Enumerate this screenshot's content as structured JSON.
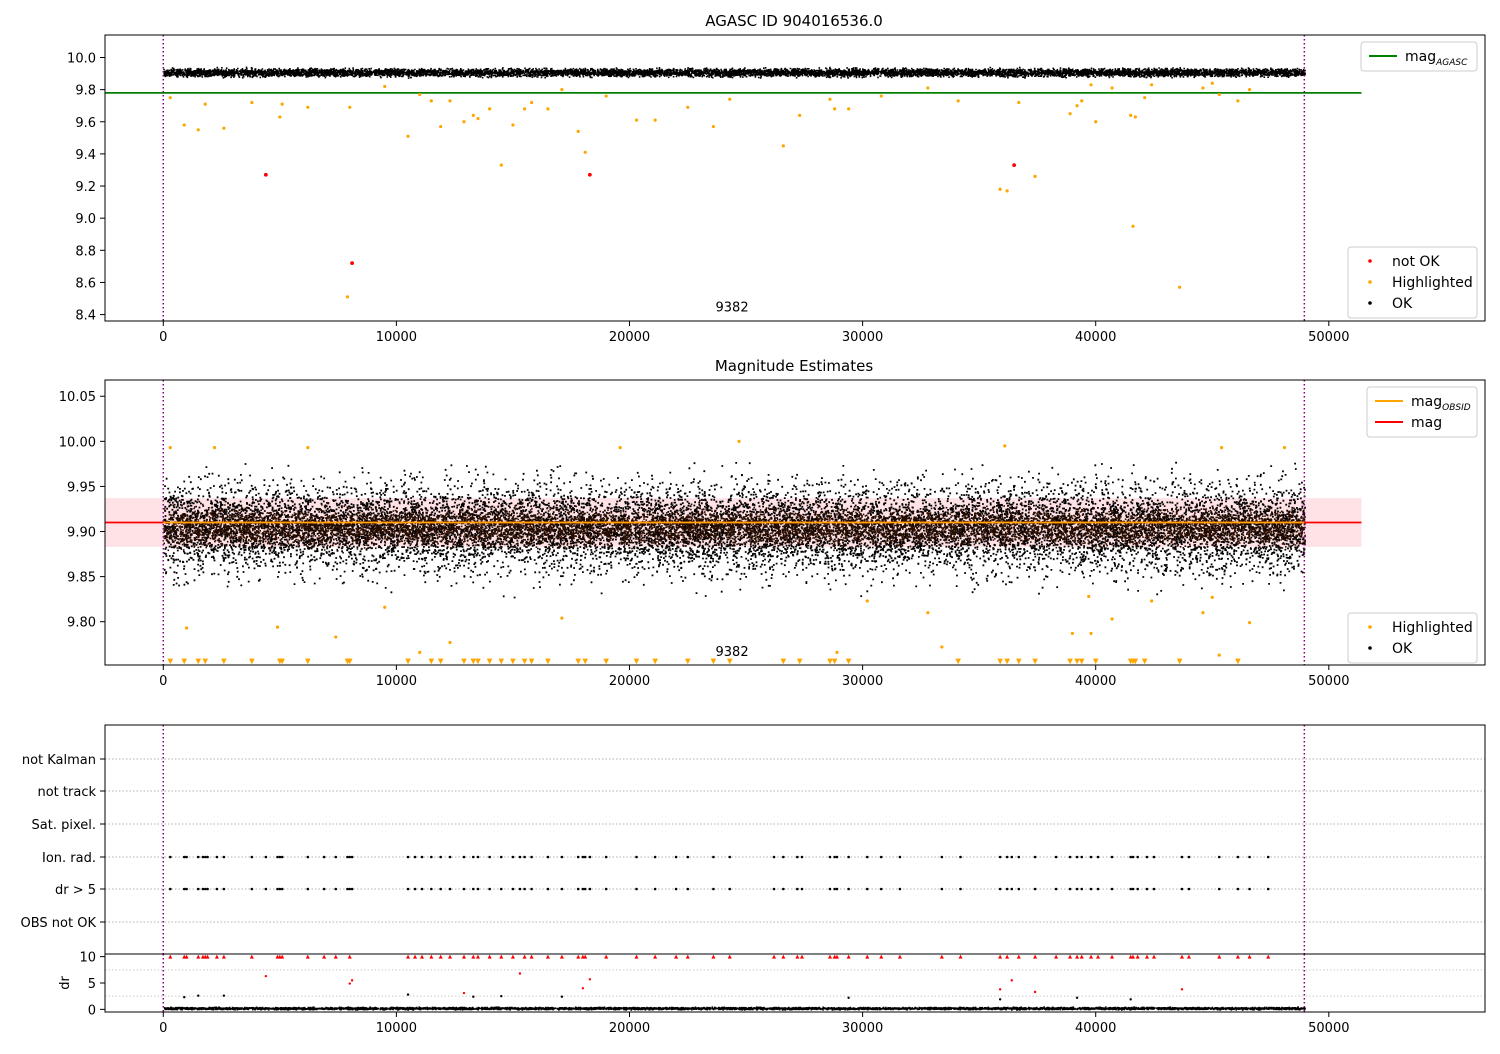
{
  "figure_title": "AGASC ID 904016536.0",
  "chart_data": [
    {
      "id": "agasc",
      "type": "scatter",
      "title": "AGASC ID 904016536.0",
      "xlim": [
        -2500,
        56700
      ],
      "ylim": [
        8.36,
        10.14
      ],
      "xticks": [
        0,
        10000,
        20000,
        30000,
        40000,
        50000
      ],
      "yticks": [
        "8.4",
        "8.6",
        "8.8",
        "9.0",
        "9.2",
        "9.4",
        "9.6",
        "9.8",
        "10.0"
      ],
      "obs_boundaries": [
        0,
        48950
      ],
      "obsid_label": "9382",
      "obsid_label_pos": [
        24400,
        8.42
      ],
      "ok_band": {
        "x0": 0,
        "x1": 48950,
        "center": 9.91,
        "half_width": 0.035,
        "color": "#000000"
      },
      "hlines": [
        {
          "name": "mag",
          "sub": "AGASC",
          "y": 9.78,
          "x0": -2500,
          "x1": 51400,
          "color": "#008000"
        }
      ],
      "series": [
        {
          "name": "not OK",
          "color": "#ff0000",
          "points": [
            [
              4400,
              9.27
            ],
            [
              8100,
              8.72
            ],
            [
              18300,
              9.27
            ],
            [
              36500,
              9.33
            ]
          ]
        },
        {
          "name": "Highlighted",
          "color": "#ffa500",
          "points": [
            [
              300,
              9.75
            ],
            [
              900,
              9.58
            ],
            [
              1500,
              9.55
            ],
            [
              1800,
              9.71
            ],
            [
              2600,
              9.56
            ],
            [
              3800,
              9.72
            ],
            [
              5000,
              9.63
            ],
            [
              5100,
              9.71
            ],
            [
              6200,
              9.69
            ],
            [
              7900,
              8.51
            ],
            [
              8000,
              9.69
            ],
            [
              9500,
              9.82
            ],
            [
              10500,
              9.51
            ],
            [
              11000,
              9.77
            ],
            [
              11500,
              9.73
            ],
            [
              11900,
              9.57
            ],
            [
              12300,
              9.73
            ],
            [
              12900,
              9.6
            ],
            [
              13300,
              9.64
            ],
            [
              13500,
              9.62
            ],
            [
              14000,
              9.68
            ],
            [
              14500,
              9.33
            ],
            [
              15000,
              9.58
            ],
            [
              15500,
              9.68
            ],
            [
              15800,
              9.72
            ],
            [
              16500,
              9.68
            ],
            [
              17100,
              9.8
            ],
            [
              17800,
              9.54
            ],
            [
              18100,
              9.41
            ],
            [
              19000,
              9.76
            ],
            [
              20300,
              9.61
            ],
            [
              21100,
              9.61
            ],
            [
              22500,
              9.69
            ],
            [
              23600,
              9.57
            ],
            [
              24300,
              9.74
            ],
            [
              26600,
              9.45
            ],
            [
              27300,
              9.64
            ],
            [
              28600,
              9.74
            ],
            [
              28800,
              9.68
            ],
            [
              29400,
              9.68
            ],
            [
              30800,
              9.76
            ],
            [
              32800,
              9.81
            ],
            [
              34100,
              9.73
            ],
            [
              35900,
              9.18
            ],
            [
              36200,
              9.17
            ],
            [
              36700,
              9.72
            ],
            [
              37400,
              9.26
            ],
            [
              38900,
              9.65
            ],
            [
              39200,
              9.7
            ],
            [
              39400,
              9.73
            ],
            [
              39800,
              9.83
            ],
            [
              40000,
              9.6
            ],
            [
              40700,
              9.81
            ],
            [
              41500,
              9.64
            ],
            [
              41600,
              8.95
            ],
            [
              41700,
              9.63
            ],
            [
              42100,
              9.75
            ],
            [
              42400,
              9.83
            ],
            [
              43600,
              8.57
            ],
            [
              44600,
              9.81
            ],
            [
              45000,
              9.84
            ],
            [
              45300,
              9.77
            ],
            [
              46100,
              9.73
            ],
            [
              46600,
              9.8
            ]
          ]
        }
      ],
      "legends": [
        {
          "position": "top-right",
          "entries": [
            {
              "label": "mag",
              "sub": "AGASC",
              "kind": "line",
              "color": "#008000"
            }
          ]
        },
        {
          "position": "bottom-right",
          "entries": [
            {
              "label": "not OK",
              "kind": "marker",
              "color": "#ff0000"
            },
            {
              "label": "Highlighted",
              "kind": "marker",
              "color": "#ffa500"
            },
            {
              "label": "OK",
              "kind": "marker",
              "color": "#000000"
            }
          ]
        }
      ]
    },
    {
      "id": "estimates",
      "type": "scatter",
      "title": "Magnitude Estimates",
      "xlim": [
        -2500,
        56700
      ],
      "ylim": [
        9.752,
        10.068
      ],
      "xticks": [
        0,
        10000,
        20000,
        30000,
        40000,
        50000
      ],
      "yticks": [
        "9.80",
        "9.85",
        "9.90",
        "9.95",
        "10.00",
        "10.05"
      ],
      "obs_boundaries": [
        0,
        48950
      ],
      "obsid_label": "9382",
      "obsid_label_pos": [
        24400,
        9.762
      ],
      "ok_band": {
        "x0": 0,
        "x1": 48950,
        "center": 9.905,
        "half_width": 0.03,
        "color": "#2a0e00"
      },
      "shaded_band": {
        "y0": 9.883,
        "y1": 9.937,
        "x0": -2500,
        "x1": 51400,
        "color": "#ffb6c1",
        "opacity": 0.4
      },
      "hlines": [
        {
          "name": "mag",
          "y": 9.91,
          "x0": -2500,
          "x1": 51400,
          "color": "#ff0000"
        },
        {
          "name": "mag",
          "sub": "OBSID",
          "y": 9.91,
          "x0": 0,
          "x1": 48950,
          "color": "#ffa500"
        }
      ],
      "series": [
        {
          "name": "Highlighted",
          "color": "#ffa500",
          "points": [
            [
              300,
              9.993
            ],
            [
              1000,
              9.793
            ],
            [
              2200,
              9.993
            ],
            [
              4900,
              9.794
            ],
            [
              6200,
              9.993
            ],
            [
              7400,
              9.783
            ],
            [
              9500,
              9.816
            ],
            [
              11000,
              9.766
            ],
            [
              12300,
              9.777
            ],
            [
              17100,
              9.804
            ],
            [
              19600,
              9.993
            ],
            [
              24700,
              10.0
            ],
            [
              28900,
              9.766
            ],
            [
              30200,
              9.823
            ],
            [
              32800,
              9.81
            ],
            [
              33400,
              9.772
            ],
            [
              36100,
              9.995
            ],
            [
              39000,
              9.787
            ],
            [
              39700,
              9.828
            ],
            [
              39800,
              9.787
            ],
            [
              40700,
              9.803
            ],
            [
              42400,
              9.823
            ],
            [
              44600,
              9.81
            ],
            [
              45000,
              9.827
            ],
            [
              45300,
              9.763
            ],
            [
              45400,
              9.993
            ],
            [
              46600,
              9.799
            ],
            [
              48100,
              9.993
            ]
          ]
        },
        {
          "name": "Highlighted (below range)",
          "color": "#ffa500",
          "marker": "triangle-down",
          "y": 9.756,
          "x": [
            300,
            900,
            1500,
            1800,
            2600,
            3800,
            5000,
            5100,
            6200,
            7900,
            8000,
            10500,
            11500,
            11900,
            12900,
            13300,
            13500,
            14000,
            14500,
            15000,
            15500,
            15800,
            16500,
            17800,
            18100,
            19000,
            20300,
            21100,
            22500,
            23600,
            24300,
            26600,
            27300,
            28600,
            28800,
            29400,
            34100,
            35900,
            36200,
            36700,
            37400,
            38900,
            39200,
            39400,
            40000,
            41500,
            41600,
            41700,
            42100,
            43600,
            46100
          ]
        }
      ],
      "legends": [
        {
          "position": "top-right",
          "entries": [
            {
              "label": "mag",
              "sub": "OBSID",
              "kind": "line",
              "color": "#ffa500"
            },
            {
              "label": "mag",
              "kind": "line",
              "color": "#ff0000"
            }
          ]
        },
        {
          "position": "bottom-right",
          "entries": [
            {
              "label": "Highlighted",
              "kind": "marker",
              "color": "#ffa500"
            },
            {
              "label": "OK",
              "kind": "marker",
              "color": "#000000"
            }
          ]
        }
      ]
    },
    {
      "id": "flags",
      "type": "scatter",
      "xlim": [
        -2500,
        56700
      ],
      "xticks": [],
      "obs_boundaries": [
        0,
        48950
      ],
      "rows": [
        "not Kalman",
        "not track",
        "Sat. pixel.",
        "Ion. rad.",
        "dr > 5",
        "OBS not OK"
      ],
      "flag_points": {
        "Ion. rad.": [
          300,
          900,
          1000,
          1500,
          1700,
          1800,
          1900,
          2300,
          2600,
          3800,
          4400,
          4900,
          5000,
          5100,
          6200,
          6900,
          7400,
          7900,
          8000,
          8100,
          10500,
          10800,
          11100,
          11500,
          11900,
          12300,
          12900,
          13300,
          13500,
          14000,
          14500,
          15000,
          15300,
          15500,
          15800,
          16500,
          17100,
          17800,
          18000,
          18100,
          18300,
          19000,
          20300,
          21100,
          22000,
          22500,
          23600,
          24300,
          26200,
          26600,
          27200,
          27400,
          28600,
          28800,
          28900,
          29400,
          30200,
          30800,
          31600,
          33400,
          34200,
          35900,
          36200,
          36400,
          36700,
          37400,
          38300,
          38900,
          39200,
          39400,
          39800,
          40100,
          40700,
          41500,
          41600,
          41800,
          42200,
          42500,
          43700,
          44000,
          45300,
          46100,
          46600,
          47400
        ],
        "dr > 5": [
          300,
          900,
          1000,
          1500,
          1700,
          1800,
          1900,
          2300,
          2600,
          3800,
          4400,
          4900,
          5000,
          5100,
          6200,
          6900,
          7400,
          7900,
          8000,
          8100,
          10500,
          10800,
          11100,
          11500,
          11900,
          12300,
          12900,
          13300,
          13500,
          14000,
          14500,
          15000,
          15300,
          15500,
          15800,
          16500,
          17100,
          17800,
          18000,
          18100,
          18300,
          19000,
          20300,
          21100,
          22000,
          22500,
          23600,
          24300,
          26200,
          26600,
          27200,
          27400,
          28600,
          28800,
          28900,
          29400,
          30200,
          30800,
          31600,
          33400,
          34200,
          35900,
          36200,
          36400,
          36700,
          37400,
          38300,
          38900,
          39200,
          39400,
          39800,
          40100,
          40700,
          41500,
          41600,
          41800,
          42200,
          42500,
          43700,
          44000,
          45300,
          46100,
          46600,
          47400
        ]
      }
    },
    {
      "id": "dr",
      "type": "scatter",
      "ylabel": "dr",
      "xlim": [
        -2500,
        56700
      ],
      "ylim": [
        -0.5,
        10.5
      ],
      "xticks": [
        0,
        10000,
        20000,
        30000,
        40000,
        50000
      ],
      "yticks": [
        "0",
        "5",
        "10"
      ],
      "obs_boundaries": [
        0,
        48950
      ],
      "ok_band": {
        "x0": 0,
        "x1": 48950,
        "center": 0.3,
        "half_width": 0.3,
        "color": "#000000"
      },
      "series": [
        {
          "name": "capped",
          "color": "#ff0000",
          "marker": "triangle-up",
          "y": 10,
          "x": [
            300,
            900,
            1000,
            1500,
            1700,
            1800,
            1900,
            2300,
            2600,
            3800,
            4900,
            5000,
            5100,
            6200,
            6900,
            7400,
            8000,
            10500,
            10800,
            11100,
            11500,
            11900,
            12300,
            12900,
            13300,
            13500,
            14000,
            14500,
            15000,
            15500,
            15800,
            16500,
            17100,
            17800,
            18000,
            18100,
            19000,
            20300,
            21100,
            22000,
            22500,
            23600,
            24300,
            26200,
            26600,
            27200,
            27400,
            28600,
            28800,
            28900,
            29400,
            30200,
            30800,
            31600,
            33400,
            34200,
            35900,
            36200,
            36700,
            37400,
            38300,
            38900,
            39200,
            39400,
            39800,
            40100,
            40700,
            41500,
            41600,
            41800,
            42200,
            42500,
            43700,
            44000,
            45300,
            46100,
            46600,
            47400
          ]
        },
        {
          "name": "dr > 5",
          "color": "#ff0000",
          "points": [
            [
              4400,
              6.3
            ],
            [
              8000,
              4.9
            ],
            [
              8100,
              5.5
            ],
            [
              12900,
              3.1
            ],
            [
              15300,
              6.8
            ],
            [
              18000,
              4.0
            ],
            [
              18300,
              5.7
            ],
            [
              35900,
              3.8
            ],
            [
              36400,
              5.5
            ],
            [
              37400,
              3.3
            ],
            [
              43700,
              3.8
            ]
          ]
        },
        {
          "name": "dr ok",
          "color": "#000000",
          "points": [
            [
              1500,
              2.6
            ],
            [
              2600,
              2.6
            ],
            [
              900,
              2.3
            ],
            [
              10500,
              2.8
            ],
            [
              13300,
              2.4
            ],
            [
              14500,
              2.5
            ],
            [
              17100,
              2.4
            ],
            [
              29400,
              2.2
            ],
            [
              39200,
              2.2
            ],
            [
              41500,
              1.9
            ],
            [
              35900,
              1.9
            ]
          ]
        }
      ]
    }
  ]
}
